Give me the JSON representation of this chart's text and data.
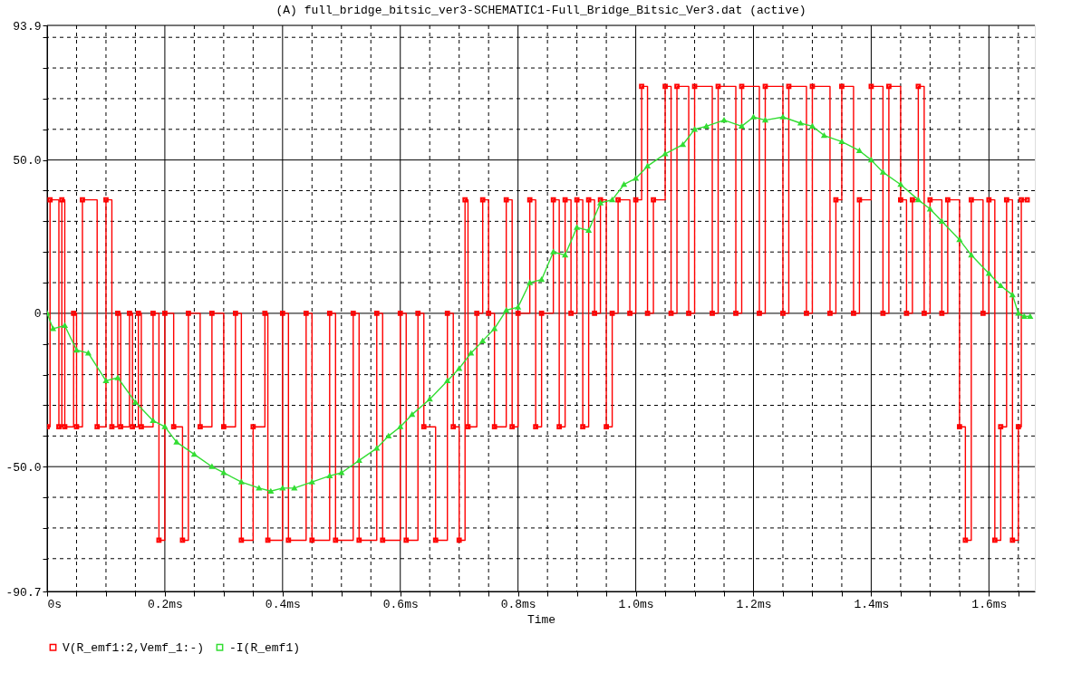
{
  "chart_data": {
    "type": "line",
    "title": "(A) full_bridge_bitsic_ver3-SCHEMATIC1-Full_Bridge_Bitsic_Ver3.dat (active)",
    "xlabel": "Time",
    "xlim": [
      0,
      1.678
    ],
    "ylim": [
      -90.7,
      93.9
    ],
    "xticks": [
      {
        "value": 0,
        "label": "0s"
      },
      {
        "value": 0.05,
        "label": null
      },
      {
        "value": 0.1,
        "label": null
      },
      {
        "value": 0.15,
        "label": null
      },
      {
        "value": 0.2,
        "label": "0.2ms"
      },
      {
        "value": 0.25,
        "label": null
      },
      {
        "value": 0.3,
        "label": null
      },
      {
        "value": 0.35,
        "label": null
      },
      {
        "value": 0.4,
        "label": "0.4ms"
      },
      {
        "value": 0.45,
        "label": null
      },
      {
        "value": 0.5,
        "label": null
      },
      {
        "value": 0.55,
        "label": null
      },
      {
        "value": 0.6,
        "label": "0.6ms"
      },
      {
        "value": 0.65,
        "label": null
      },
      {
        "value": 0.7,
        "label": null
      },
      {
        "value": 0.75,
        "label": null
      },
      {
        "value": 0.8,
        "label": "0.8ms"
      },
      {
        "value": 0.85,
        "label": null
      },
      {
        "value": 0.9,
        "label": null
      },
      {
        "value": 0.95,
        "label": null
      },
      {
        "value": 1.0,
        "label": "1.0ms"
      },
      {
        "value": 1.05,
        "label": null
      },
      {
        "value": 1.1,
        "label": null
      },
      {
        "value": 1.15,
        "label": null
      },
      {
        "value": 1.2,
        "label": "1.2ms"
      },
      {
        "value": 1.25,
        "label": null
      },
      {
        "value": 1.3,
        "label": null
      },
      {
        "value": 1.35,
        "label": null
      },
      {
        "value": 1.4,
        "label": "1.4ms"
      },
      {
        "value": 1.45,
        "label": null
      },
      {
        "value": 1.5,
        "label": null
      },
      {
        "value": 1.55,
        "label": null
      },
      {
        "value": 1.6,
        "label": "1.6ms"
      },
      {
        "value": 1.65,
        "label": null
      }
    ],
    "yticks": [
      -90.7,
      {
        "value": -80,
        "label": null
      },
      {
        "value": -70,
        "label": null
      },
      {
        "value": -60,
        "label": null
      },
      {
        "value": -50,
        "label": "-50.0"
      },
      {
        "value": -40,
        "label": null
      },
      {
        "value": -30,
        "label": null
      },
      {
        "value": -20,
        "label": null
      },
      {
        "value": -10,
        "label": null
      },
      0,
      {
        "value": 10,
        "label": null
      },
      {
        "value": 20,
        "label": null
      },
      {
        "value": 30,
        "label": null
      },
      {
        "value": 40,
        "label": null
      },
      {
        "value": 50,
        "label": "50.0"
      },
      {
        "value": 60,
        "label": null
      },
      {
        "value": 70,
        "label": null
      },
      {
        "value": 80,
        "label": null
      },
      {
        "value": 90,
        "label": null
      },
      93.9
    ],
    "grid": true,
    "legend": "bottom left",
    "series": [
      {
        "name": "V(R_emf1:2,Vemf_1:-)",
        "type": "step",
        "color": "#ff0000",
        "marker": "square",
        "x": [
          0,
          0.005,
          0.02,
          0.025,
          0.03,
          0.045,
          0.05,
          0.06,
          0.085,
          0.1,
          0.11,
          0.12,
          0.125,
          0.14,
          0.145,
          0.155,
          0.16,
          0.18,
          0.19,
          0.2,
          0.215,
          0.23,
          0.24,
          0.26,
          0.28,
          0.3,
          0.32,
          0.33,
          0.35,
          0.37,
          0.375,
          0.4,
          0.41,
          0.44,
          0.45,
          0.48,
          0.49,
          0.52,
          0.53,
          0.56,
          0.57,
          0.6,
          0.61,
          0.63,
          0.64,
          0.66,
          0.68,
          0.69,
          0.7,
          0.71,
          0.715,
          0.73,
          0.74,
          0.75,
          0.76,
          0.78,
          0.79,
          0.8,
          0.82,
          0.83,
          0.84,
          0.86,
          0.87,
          0.88,
          0.89,
          0.9,
          0.91,
          0.92,
          0.93,
          0.94,
          0.95,
          0.96,
          0.97,
          0.99,
          1.0,
          1.01,
          1.02,
          1.03,
          1.05,
          1.06,
          1.07,
          1.09,
          1.1,
          1.13,
          1.14,
          1.17,
          1.18,
          1.21,
          1.22,
          1.25,
          1.26,
          1.29,
          1.3,
          1.33,
          1.34,
          1.35,
          1.37,
          1.38,
          1.4,
          1.42,
          1.43,
          1.45,
          1.46,
          1.47,
          1.48,
          1.49,
          1.5,
          1.52,
          1.53,
          1.55,
          1.56,
          1.57,
          1.59,
          1.6,
          1.61,
          1.62,
          1.63,
          1.64,
          1.65,
          1.655,
          1.665
        ],
        "values": [
          -37,
          37,
          -37,
          37,
          -37,
          0,
          -37,
          37,
          -37,
          37,
          -37,
          0,
          -37,
          0,
          -37,
          0,
          -37,
          0,
          -74,
          0,
          -37,
          -74,
          0,
          -37,
          0,
          -37,
          0,
          -74,
          -37,
          0,
          -74,
          0,
          -74,
          0,
          -74,
          0,
          -74,
          0,
          -74,
          0,
          -74,
          0,
          -74,
          0,
          -37,
          -74,
          0,
          -37,
          -74,
          37,
          -37,
          0,
          37,
          0,
          -37,
          37,
          -37,
          0,
          37,
          -37,
          0,
          37,
          -37,
          37,
          0,
          37,
          -37,
          37,
          0,
          37,
          -37,
          0,
          37,
          0,
          37,
          74,
          0,
          37,
          74,
          0,
          74,
          0,
          74,
          0,
          74,
          0,
          74,
          0,
          74,
          0,
          74,
          0,
          74,
          0,
          37,
          74,
          0,
          37,
          74,
          0,
          74,
          37,
          0,
          37,
          74,
          0,
          37,
          0,
          37,
          -37,
          -74,
          37,
          0,
          37,
          -74,
          -37,
          37,
          -74,
          -37,
          37,
          37
        ]
      },
      {
        "name": "-I(R_emf1)",
        "type": "line",
        "color": "#33dd33",
        "marker": "triangle",
        "x": [
          0,
          0.01,
          0.03,
          0.05,
          0.07,
          0.1,
          0.12,
          0.15,
          0.18,
          0.2,
          0.22,
          0.25,
          0.28,
          0.3,
          0.33,
          0.36,
          0.38,
          0.4,
          0.42,
          0.45,
          0.48,
          0.5,
          0.53,
          0.56,
          0.58,
          0.6,
          0.62,
          0.65,
          0.68,
          0.7,
          0.72,
          0.74,
          0.76,
          0.78,
          0.8,
          0.82,
          0.84,
          0.86,
          0.88,
          0.9,
          0.92,
          0.94,
          0.96,
          0.98,
          1.0,
          1.02,
          1.05,
          1.08,
          1.1,
          1.12,
          1.15,
          1.18,
          1.2,
          1.22,
          1.25,
          1.28,
          1.3,
          1.32,
          1.35,
          1.38,
          1.4,
          1.42,
          1.45,
          1.48,
          1.5,
          1.52,
          1.55,
          1.57,
          1.6,
          1.62,
          1.64,
          1.65,
          1.66,
          1.67
        ],
        "values": [
          0,
          -5,
          -4,
          -12,
          -13,
          -22,
          -21,
          -29,
          -35,
          -37,
          -42,
          -46,
          -50,
          -52,
          -55,
          -57,
          -58,
          -57,
          -57,
          -55,
          -53,
          -52,
          -48,
          -44,
          -40,
          -37,
          -33,
          -28,
          -22,
          -18,
          -13,
          -9,
          -5,
          1,
          2,
          10,
          11,
          20,
          19,
          28,
          27,
          36,
          37,
          42,
          44,
          48,
          52,
          55,
          60,
          61,
          63,
          61,
          64,
          63,
          64,
          62,
          61,
          58,
          56,
          53,
          50,
          46,
          42,
          37,
          34,
          30,
          24,
          19,
          13,
          9,
          6,
          0,
          -1,
          -1
        ]
      }
    ]
  }
}
